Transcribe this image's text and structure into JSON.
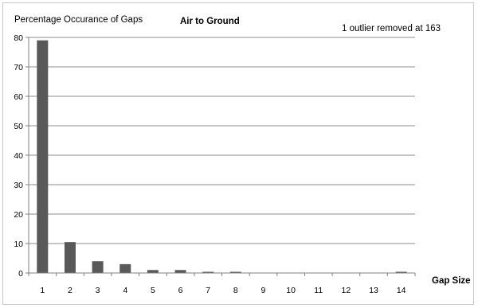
{
  "chart_data": {
    "type": "bar",
    "title": "Air to Ground",
    "ylabel": "Percentage Occurance of Gaps",
    "xlabel": "Gap Size",
    "annotation": "1 outlier removed at 163",
    "categories": [
      "1",
      "2",
      "3",
      "4",
      "5",
      "6",
      "7",
      "8",
      "9",
      "10",
      "11",
      "12",
      "13",
      "14"
    ],
    "values": [
      79,
      10.5,
      4,
      3,
      1,
      1,
      0.4,
      0.4,
      0.1,
      0.1,
      0.1,
      0.1,
      0.1,
      0.4
    ],
    "ylim": [
      0,
      80
    ],
    "yticks": [
      0,
      10,
      20,
      30,
      40,
      50,
      60,
      70,
      80
    ],
    "grid": true,
    "bar_color": "#595959",
    "grid_color": "#8c8c8c"
  }
}
